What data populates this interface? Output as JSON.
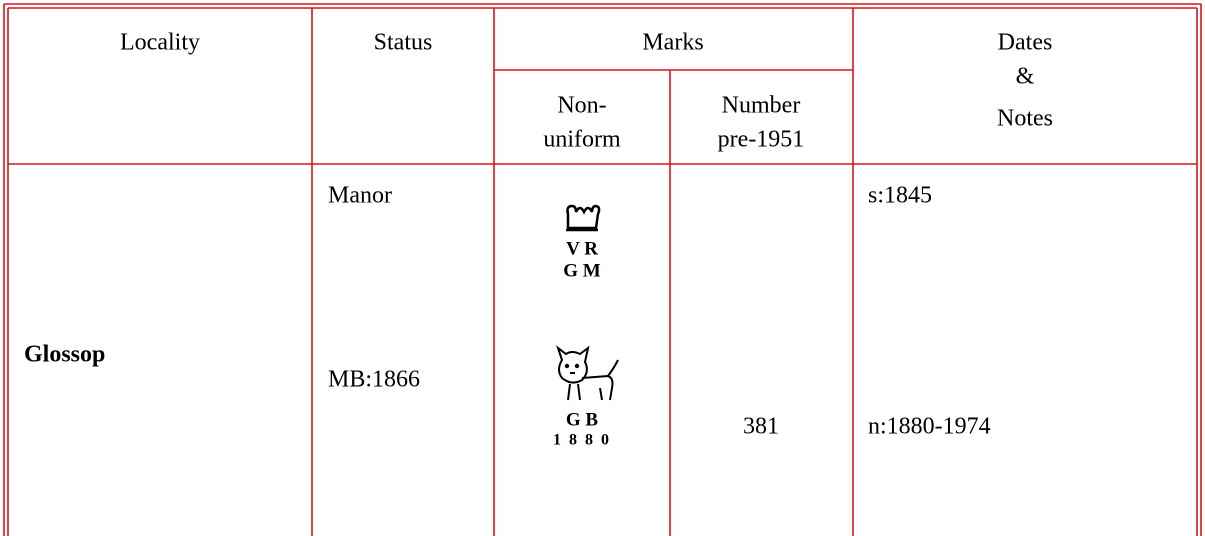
{
  "table": {
    "header": {
      "locality": "Locality",
      "status": "Status",
      "marks": "Marks",
      "non_uniform": [
        "Non-",
        "uniform"
      ],
      "number": [
        "Number",
        "pre-1951"
      ],
      "dates_notes": [
        "Dates",
        "&",
        "Notes"
      ]
    },
    "rows": [
      {
        "locality": "Glossop",
        "status": [
          "Manor",
          "MB:1866"
        ],
        "marks": [
          {
            "letters": [
              "V R",
              "G M"
            ]
          },
          {
            "letters": [
              "G B",
              "1 8 8 0"
            ]
          }
        ],
        "number": "381",
        "notes": [
          "s:1845",
          "n:1880-1974"
        ]
      }
    ]
  }
}
